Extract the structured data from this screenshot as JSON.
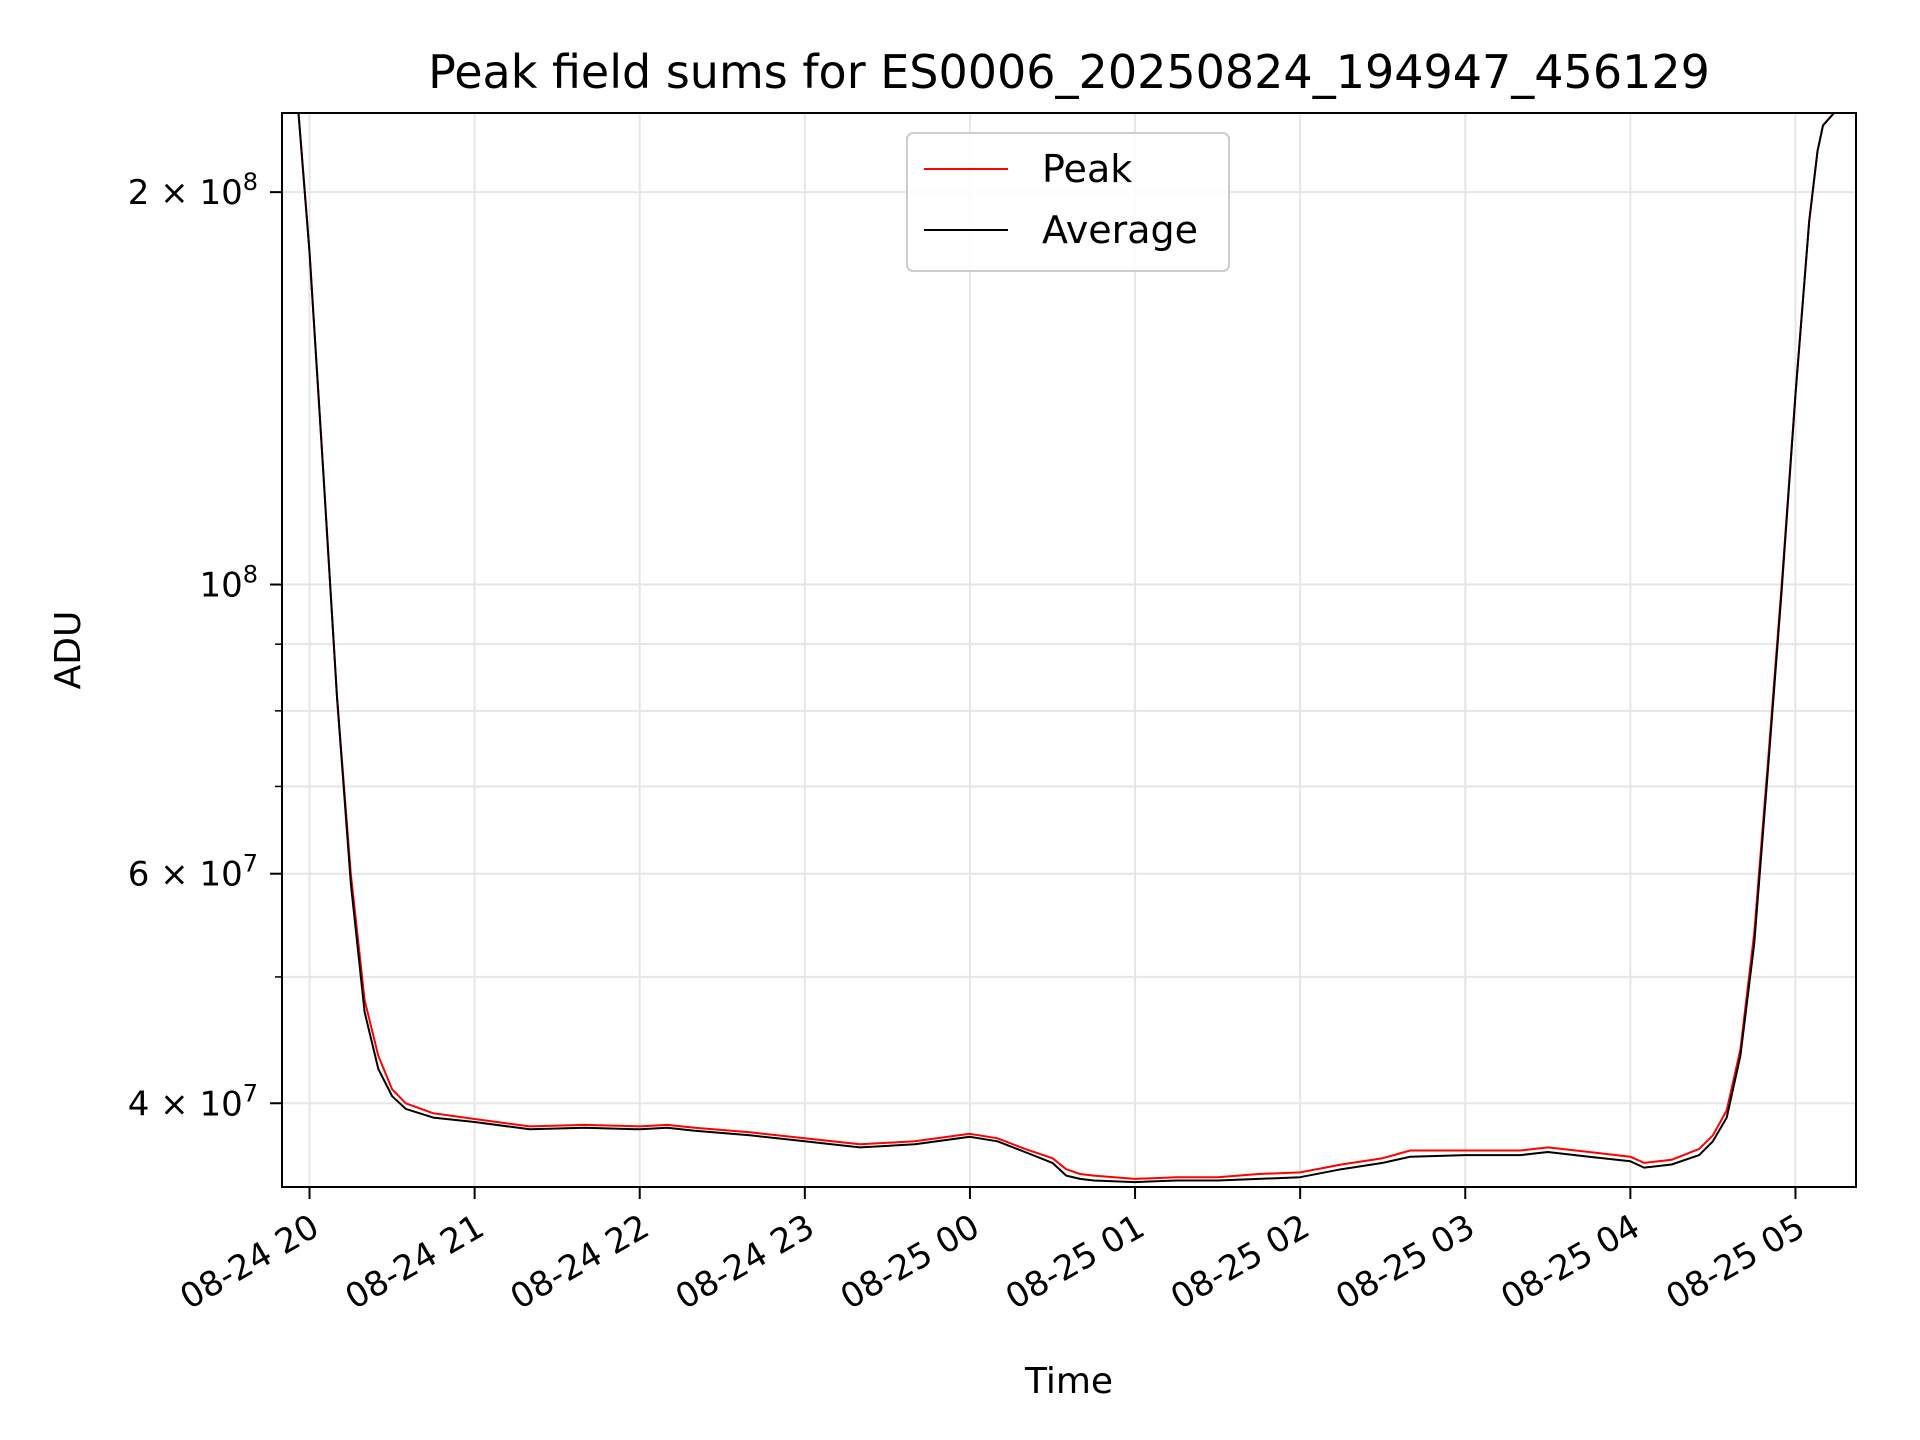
{
  "chart_data": {
    "type": "line",
    "title": "Peak field sums for ES0006_20250824_194947_456129",
    "xlabel": "Time",
    "ylabel": "ADU",
    "yscale": "log",
    "grid": true,
    "legend_position": "upper-center",
    "xlim": [
      "2025-08-24 19:50",
      "2025-08-25 05:22"
    ],
    "ylim": [
      34500000,
      230000000
    ],
    "x_ticks": [
      {
        "value": "2025-08-24 20:00",
        "label": "08-24 20"
      },
      {
        "value": "2025-08-24 21:00",
        "label": "08-24 21"
      },
      {
        "value": "2025-08-24 22:00",
        "label": "08-24 22"
      },
      {
        "value": "2025-08-24 23:00",
        "label": "08-24 23"
      },
      {
        "value": "2025-08-25 00:00",
        "label": "08-25 00"
      },
      {
        "value": "2025-08-25 01:00",
        "label": "08-25 01"
      },
      {
        "value": "2025-08-25 02:00",
        "label": "08-25 02"
      },
      {
        "value": "2025-08-25 03:00",
        "label": "08-25 03"
      },
      {
        "value": "2025-08-25 04:00",
        "label": "08-25 04"
      },
      {
        "value": "2025-08-25 05:00",
        "label": "08-25 05"
      }
    ],
    "y_ticks": [
      {
        "value": 40000000,
        "label": "4 × 10",
        "exp": "7"
      },
      {
        "value": 60000000,
        "label": "6 × 10",
        "exp": "7"
      },
      {
        "value": 100000000,
        "label": "10",
        "exp": "8"
      },
      {
        "value": 200000000,
        "label": "2 × 10",
        "exp": "8"
      }
    ],
    "y_minor_ticks": [
      50000000,
      70000000,
      80000000,
      90000000
    ],
    "series": [
      {
        "name": "Peak",
        "color": "#ff0000",
        "x": [
          "2025-08-24 19:50",
          "2025-08-24 19:56",
          "2025-08-24 20:00",
          "2025-08-24 20:05",
          "2025-08-24 20:10",
          "2025-08-24 20:15",
          "2025-08-24 20:20",
          "2025-08-24 20:25",
          "2025-08-24 20:30",
          "2025-08-24 20:35",
          "2025-08-24 20:45",
          "2025-08-24 21:00",
          "2025-08-24 21:20",
          "2025-08-24 21:40",
          "2025-08-24 22:00",
          "2025-08-24 22:10",
          "2025-08-24 22:20",
          "2025-08-24 22:40",
          "2025-08-24 23:00",
          "2025-08-24 23:20",
          "2025-08-24 23:40",
          "2025-08-25 00:00",
          "2025-08-25 00:10",
          "2025-08-25 00:20",
          "2025-08-25 00:30",
          "2025-08-25 00:35",
          "2025-08-25 00:40",
          "2025-08-25 00:45",
          "2025-08-25 01:00",
          "2025-08-25 01:15",
          "2025-08-25 01:30",
          "2025-08-25 01:45",
          "2025-08-25 02:00",
          "2025-08-25 02:15",
          "2025-08-25 02:30",
          "2025-08-25 02:40",
          "2025-08-25 03:00",
          "2025-08-25 03:20",
          "2025-08-25 03:30",
          "2025-08-25 03:45",
          "2025-08-25 04:00",
          "2025-08-25 04:05",
          "2025-08-25 04:15",
          "2025-08-25 04:25",
          "2025-08-25 04:30",
          "2025-08-25 04:35",
          "2025-08-25 04:40",
          "2025-08-25 04:45",
          "2025-08-25 04:50",
          "2025-08-25 04:55",
          "2025-08-25 05:00",
          "2025-08-25 05:05",
          "2025-08-25 05:08",
          "2025-08-25 05:10",
          "2025-08-25 05:14",
          "2025-08-25 05:22"
        ],
        "y": [
          230000000,
          230000000,
          180000000,
          122000000,
          82000000,
          60000000,
          48000000,
          43500000,
          41000000,
          40000000,
          39300000,
          38900000,
          38400000,
          38500000,
          38400000,
          38500000,
          38300000,
          38000000,
          37600000,
          37200000,
          37400000,
          37900000,
          37600000,
          36900000,
          36300000,
          35600000,
          35300000,
          35200000,
          35000000,
          35100000,
          35100000,
          35300000,
          35400000,
          35900000,
          36300000,
          36800000,
          36800000,
          36800000,
          37000000,
          36700000,
          36400000,
          36000000,
          36200000,
          36900000,
          37800000,
          39500000,
          44000000,
          54000000,
          73000000,
          100000000,
          140000000,
          190000000,
          215000000,
          225000000,
          230000000,
          230000000
        ]
      },
      {
        "name": "Average",
        "color": "#000000",
        "x": [
          "2025-08-24 19:50",
          "2025-08-24 19:56",
          "2025-08-24 20:00",
          "2025-08-24 20:05",
          "2025-08-24 20:10",
          "2025-08-24 20:15",
          "2025-08-24 20:20",
          "2025-08-24 20:25",
          "2025-08-24 20:30",
          "2025-08-24 20:35",
          "2025-08-24 20:45",
          "2025-08-24 21:00",
          "2025-08-24 21:20",
          "2025-08-24 21:40",
          "2025-08-24 22:00",
          "2025-08-24 22:10",
          "2025-08-24 22:20",
          "2025-08-24 22:40",
          "2025-08-24 23:00",
          "2025-08-24 23:20",
          "2025-08-24 23:40",
          "2025-08-25 00:00",
          "2025-08-25 00:10",
          "2025-08-25 00:20",
          "2025-08-25 00:30",
          "2025-08-25 00:35",
          "2025-08-25 00:40",
          "2025-08-25 00:45",
          "2025-08-25 01:00",
          "2025-08-25 01:15",
          "2025-08-25 01:30",
          "2025-08-25 01:45",
          "2025-08-25 02:00",
          "2025-08-25 02:15",
          "2025-08-25 02:30",
          "2025-08-25 02:40",
          "2025-08-25 03:00",
          "2025-08-25 03:20",
          "2025-08-25 03:30",
          "2025-08-25 03:45",
          "2025-08-25 04:00",
          "2025-08-25 04:05",
          "2025-08-25 04:15",
          "2025-08-25 04:25",
          "2025-08-25 04:30",
          "2025-08-25 04:35",
          "2025-08-25 04:40",
          "2025-08-25 04:45",
          "2025-08-25 04:50",
          "2025-08-25 04:55",
          "2025-08-25 05:00",
          "2025-08-25 05:05",
          "2025-08-25 05:08",
          "2025-08-25 05:10",
          "2025-08-25 05:14",
          "2025-08-25 05:22"
        ],
        "y": [
          230000000,
          230000000,
          180000000,
          122000000,
          82000000,
          59000000,
          47000000,
          42500000,
          40500000,
          39600000,
          39000000,
          38700000,
          38200000,
          38300000,
          38200000,
          38300000,
          38100000,
          37800000,
          37400000,
          37000000,
          37200000,
          37700000,
          37400000,
          36700000,
          36000000,
          35200000,
          35000000,
          34900000,
          34800000,
          34900000,
          34900000,
          35000000,
          35100000,
          35600000,
          36000000,
          36400000,
          36500000,
          36500000,
          36700000,
          36400000,
          36100000,
          35700000,
          35900000,
          36500000,
          37400000,
          39000000,
          43500000,
          53000000,
          72000000,
          99000000,
          140000000,
          190000000,
          215000000,
          225000000,
          230000000,
          230000000
        ]
      }
    ]
  }
}
